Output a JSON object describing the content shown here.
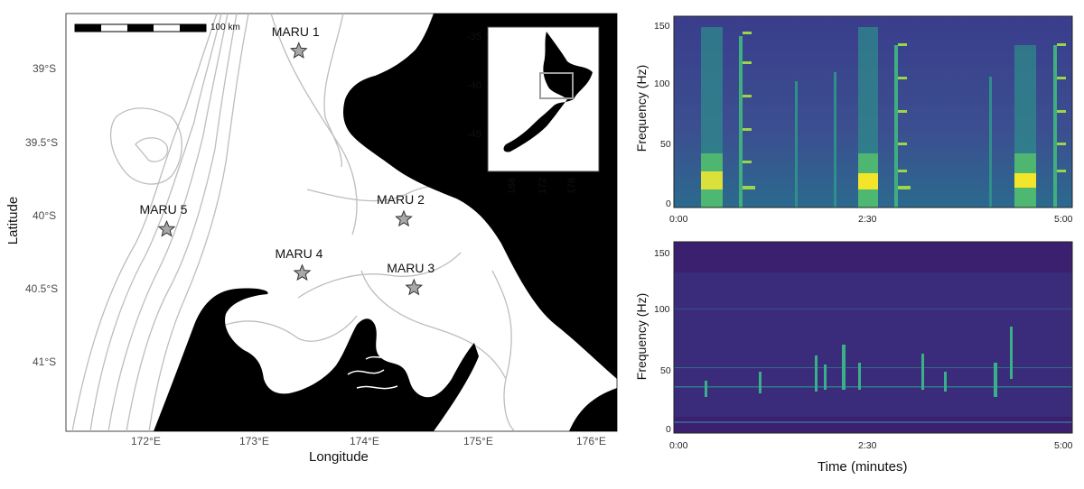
{
  "map": {
    "xlabel": "Longitude",
    "ylabel": "Latitude",
    "x_ticks": [
      "172°E",
      "173°E",
      "174°E",
      "175°E",
      "176°E"
    ],
    "y_ticks": [
      "39°S",
      "39.5°S",
      "40°S",
      "40.5°S",
      "41°S"
    ],
    "scale_bar_label": "100 km",
    "stations": [
      {
        "name": "MARU 1",
        "lon": 173.35,
        "lat": -38.88
      },
      {
        "name": "MARU 2",
        "lon": 174.28,
        "lat": -40.03
      },
      {
        "name": "MARU 3",
        "lon": 174.37,
        "lat": -40.5
      },
      {
        "name": "MARU 4",
        "lon": 173.38,
        "lat": -40.4
      },
      {
        "name": "MARU 5",
        "lon": 172.18,
        "lat": -40.1
      }
    ],
    "inset": {
      "y_ticks": [
        "-35",
        "-40",
        "-45"
      ],
      "x_ticks": [
        "168",
        "172",
        "176"
      ]
    }
  },
  "spectrogram_top": {
    "ylabel": "Frequency (Hz)",
    "y_ticks": [
      "150",
      "100",
      "50",
      "0"
    ],
    "x_ticks": [
      "0:00",
      "2:30",
      "5:00"
    ]
  },
  "spectrogram_bottom": {
    "ylabel": "Frequency (Hz)",
    "xlabel": "Time (minutes)",
    "y_ticks": [
      "150",
      "100",
      "50",
      "0"
    ],
    "x_ticks": [
      "0:00",
      "2:30",
      "5:00"
    ]
  }
}
